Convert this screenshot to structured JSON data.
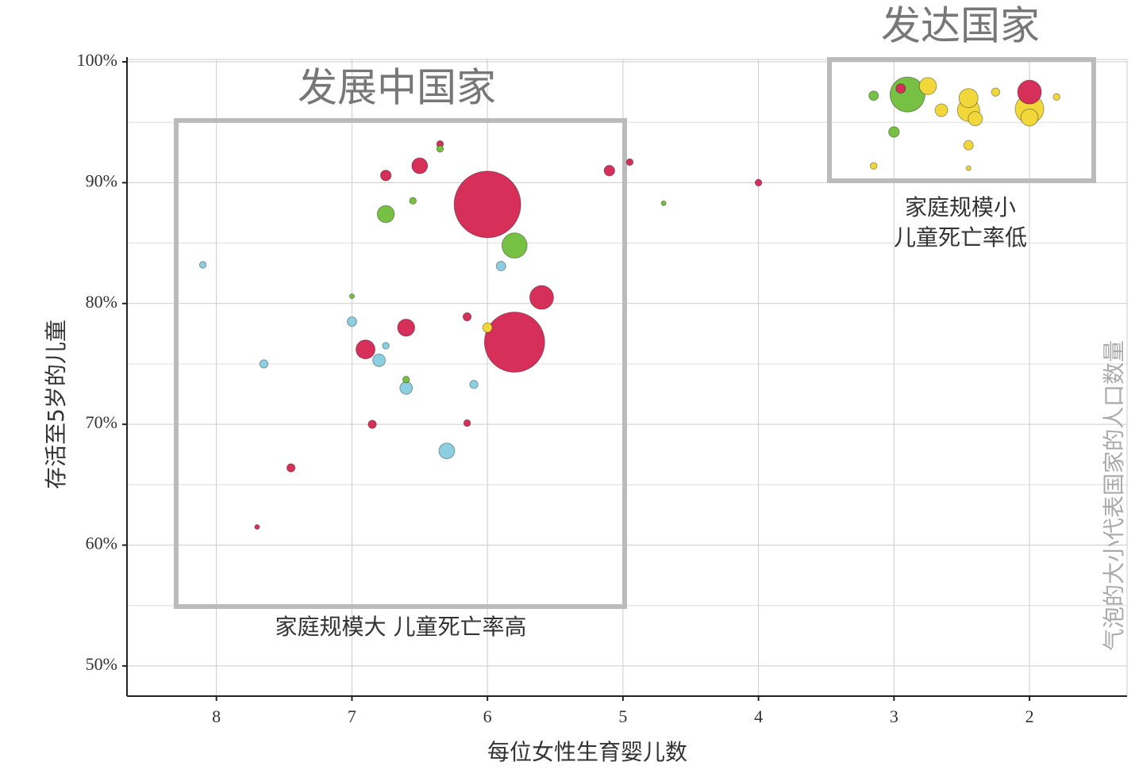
{
  "chart_data": {
    "type": "bubble",
    "x_label": "每位女性生育婴儿数",
    "y_label": "存活至5岁的儿童",
    "size_label": "气泡的大小代表国家的人口数量",
    "annotations": [
      "发展中国家",
      "发达国家",
      "家庭规模小",
      "儿童死亡率低",
      "家庭规模大 儿童死亡率高"
    ],
    "xlim": [
      8.66,
      1.28
    ],
    "ylim": [
      47.5,
      100.2
    ],
    "xticks": [
      8,
      7,
      6,
      5,
      4,
      3,
      2
    ],
    "yticks": [
      {
        "value": 50,
        "label": "50%"
      },
      {
        "value": 60,
        "label": "60%"
      },
      {
        "value": 70,
        "label": "70%"
      },
      {
        "value": 80,
        "label": "80%"
      },
      {
        "value": 90,
        "label": "90%"
      },
      {
        "value": 100,
        "label": "100%"
      }
    ],
    "y_minor_grid": [
      55,
      65,
      75,
      85,
      95
    ],
    "grid": true,
    "series": [
      {
        "color": "#d6305a",
        "x": [
          6.0,
          5.8,
          5.6,
          6.6,
          6.9,
          6.5,
          6.75,
          5.1,
          2.0,
          2.95,
          6.85,
          6.15,
          7.45,
          6.15,
          4.0,
          7.7,
          6.35,
          4.95
        ],
        "values": [
          88.2,
          76.8,
          80.5,
          78,
          76.2,
          91.4,
          90.6,
          91,
          97.5,
          97.8,
          70,
          70.1,
          66.4,
          78.9,
          90,
          61.5,
          93.2,
          91.7
        ],
        "sizes": [
          196,
          160,
          25,
          13,
          16,
          11,
          5,
          5,
          25,
          4,
          3,
          2,
          3,
          3,
          2,
          1,
          2,
          2
        ]
      },
      {
        "color": "#76c043",
        "x": [
          2.9,
          5.8,
          6.75,
          3.0,
          3.15,
          6.6,
          6.35,
          6.55,
          4.7,
          7.0
        ],
        "values": [
          97.3,
          84.8,
          87.4,
          94.2,
          97.2,
          73.7,
          92.8,
          88.5,
          88.3,
          80.6
        ],
        "sizes": [
          54,
          28,
          13,
          5,
          4,
          2,
          2,
          2,
          1,
          1
        ]
      },
      {
        "color": "#8ccfe0",
        "x": [
          6.3,
          6.6,
          6.8,
          7.0,
          5.9,
          6.1,
          7.65,
          8.1,
          6.75
        ],
        "values": [
          67.8,
          73,
          75.3,
          78.5,
          83.1,
          73.3,
          75,
          83.2,
          76.5
        ],
        "sizes": [
          11,
          7,
          7,
          4,
          4,
          3,
          3,
          2,
          2
        ]
      },
      {
        "color": "#f2d73a",
        "x": [
          2.0,
          2.45,
          2.45,
          2.75,
          2.0,
          2.4,
          2.65,
          2.45,
          6.0,
          2.25,
          1.8,
          2.45,
          3.15
        ],
        "values": [
          96.1,
          96,
          97,
          98,
          95.4,
          95.3,
          96,
          93.1,
          78,
          97.5,
          97.1,
          91.2,
          91.4
        ],
        "sizes": [
          36,
          22,
          16,
          13,
          13,
          9,
          7,
          4,
          4,
          3,
          2,
          1,
          2
        ]
      }
    ]
  }
}
